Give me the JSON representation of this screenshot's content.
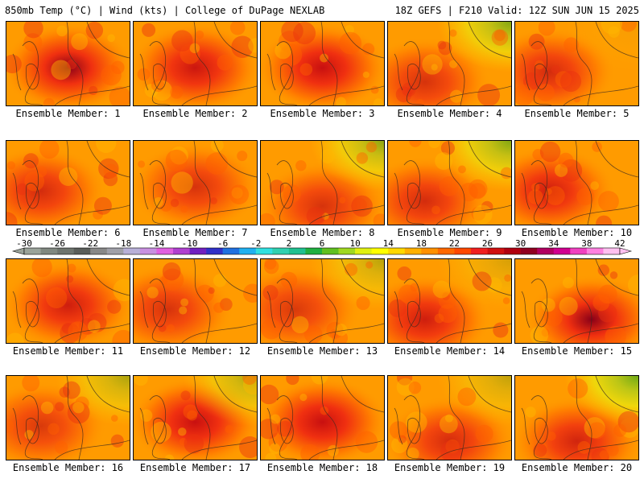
{
  "header": {
    "left": "850mb Temp (°C) | Wind (kts) | College of DuPage NEXLAB",
    "right": "18Z GEFS | F210 Valid: 12Z SUN JUN 15 2025"
  },
  "members": [
    {
      "label": "Ensemble Member: 1",
      "hot": 0.95,
      "cool": 0.0,
      "hot_at": "center"
    },
    {
      "label": "Ensemble Member: 2",
      "hot": 0.75,
      "cool": 0.0,
      "hot_at": "center"
    },
    {
      "label": "Ensemble Member: 3",
      "hot": 0.8,
      "cool": 0.0,
      "hot_at": "center"
    },
    {
      "label": "Ensemble Member: 4",
      "hot": 0.55,
      "cool": 0.6,
      "hot_at": "southwest"
    },
    {
      "label": "Ensemble Member: 5",
      "hot": 0.6,
      "cool": 0.05,
      "hot_at": "west"
    },
    {
      "label": "Ensemble Member: 6",
      "hot": 0.6,
      "cool": 0.0,
      "hot_at": "west"
    },
    {
      "label": "Ensemble Member: 7",
      "hot": 0.55,
      "cool": 0.0,
      "hot_at": "center"
    },
    {
      "label": "Ensemble Member: 8",
      "hot": 0.55,
      "cool": 0.55,
      "hot_at": "south"
    },
    {
      "label": "Ensemble Member: 9",
      "hot": 0.6,
      "cool": 0.6,
      "hot_at": "southwest"
    },
    {
      "label": "Ensemble Member: 10",
      "hot": 0.7,
      "cool": 0.0,
      "hot_at": "west"
    },
    {
      "label": "Ensemble Member: 11",
      "hot": 0.7,
      "cool": 0.0,
      "hot_at": "center"
    },
    {
      "label": "Ensemble Member: 12",
      "hot": 0.55,
      "cool": 0.0,
      "hot_at": "west"
    },
    {
      "label": "Ensemble Member: 13",
      "hot": 0.5,
      "cool": 0.35,
      "hot_at": "west"
    },
    {
      "label": "Ensemble Member: 14",
      "hot": 0.7,
      "cool": 0.2,
      "hot_at": "southwest"
    },
    {
      "label": "Ensemble Member: 15",
      "hot": 0.9,
      "cool": 0.0,
      "hot_at": "southeast"
    },
    {
      "label": "Ensemble Member: 16",
      "hot": 0.5,
      "cool": 0.4,
      "hot_at": "west"
    },
    {
      "label": "Ensemble Member: 17",
      "hot": 0.85,
      "cool": 0.45,
      "hot_at": "center"
    },
    {
      "label": "Ensemble Member: 18",
      "hot": 0.8,
      "cool": 0.0,
      "hot_at": "center"
    },
    {
      "label": "Ensemble Member: 19",
      "hot": 0.6,
      "cool": 0.3,
      "hot_at": "south"
    },
    {
      "label": "Ensemble Member: 20",
      "hot": 0.65,
      "cool": 0.7,
      "hot_at": "south"
    }
  ],
  "colorbar": {
    "ticks": [
      "-30",
      "-26",
      "-22",
      "-18",
      "-14",
      "-10",
      "-6",
      "-2",
      "2",
      "6",
      "10",
      "14",
      "18",
      "22",
      "26",
      "30",
      "34",
      "38",
      "42"
    ],
    "colors": [
      "#9aa39a",
      "#808880",
      "#6e746e",
      "#5a5e5a",
      "#888888",
      "#a0a0a8",
      "#b8b0d8",
      "#c890e0",
      "#e060e0",
      "#b040d0",
      "#7020c0",
      "#3030c8",
      "#2070e0",
      "#20b0f0",
      "#30e0e0",
      "#30d0b0",
      "#20c090",
      "#20b040",
      "#60c020",
      "#a0d820",
      "#e0f010",
      "#ffff00",
      "#ffd800",
      "#ffb000",
      "#ff9000",
      "#ff6800",
      "#ff4800",
      "#f02020",
      "#d01010",
      "#b00010",
      "#900020",
      "#b00060",
      "#d00090",
      "#f040c0",
      "#ff80e0",
      "#ffc0f0"
    ]
  }
}
